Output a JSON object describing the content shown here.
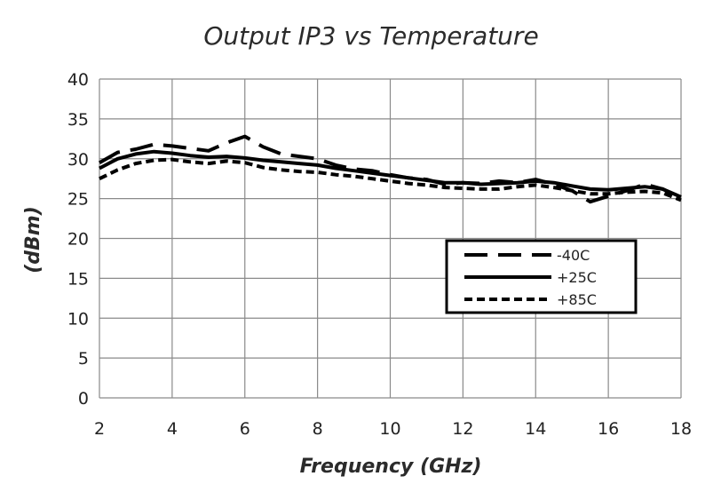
{
  "chart_data": {
    "type": "line",
    "title": "Output IP3 vs Temperature",
    "xlabel": "Frequency (GHz)",
    "ylabel": "(dBm)",
    "xlim": [
      2,
      18
    ],
    "ylim": [
      0,
      40
    ],
    "xticks": [
      2,
      4,
      6,
      8,
      10,
      12,
      14,
      16,
      18
    ],
    "yticks": [
      0,
      5,
      10,
      15,
      20,
      25,
      30,
      35,
      40
    ],
    "grid": true,
    "legend_position": "center-right",
    "series": [
      {
        "name": "-40C",
        "style": "long-dash",
        "color": "#000000",
        "x": [
          2,
          2.5,
          3,
          3.5,
          4,
          4.5,
          5,
          5.5,
          6,
          6.5,
          7,
          7.5,
          8,
          8.5,
          9,
          9.5,
          10,
          10.5,
          11,
          11.5,
          12,
          12.5,
          13,
          13.5,
          14,
          14.5,
          15,
          15.5,
          16,
          16.5,
          17,
          17.5,
          18
        ],
        "y": [
          29.5,
          30.8,
          31.2,
          31.8,
          31.6,
          31.3,
          31.0,
          32.0,
          32.8,
          31.5,
          30.6,
          30.3,
          30.0,
          29.2,
          28.7,
          28.5,
          28.0,
          27.6,
          27.4,
          26.8,
          27.0,
          26.9,
          27.2,
          27.0,
          27.4,
          26.8,
          26.0,
          24.6,
          25.3,
          26.0,
          26.8,
          26.2,
          25.0
        ]
      },
      {
        "name": "+25C",
        "style": "solid",
        "color": "#000000",
        "x": [
          2,
          2.5,
          3,
          3.5,
          4,
          4.5,
          5,
          5.5,
          6,
          6.5,
          7,
          7.5,
          8,
          8.5,
          9,
          9.5,
          10,
          10.5,
          11,
          11.5,
          12,
          12.5,
          13,
          13.5,
          14,
          14.5,
          15,
          15.5,
          16,
          16.5,
          17,
          17.5,
          18
        ],
        "y": [
          28.8,
          30.0,
          30.6,
          30.9,
          30.7,
          30.4,
          30.2,
          30.3,
          30.1,
          29.8,
          29.6,
          29.4,
          29.2,
          28.8,
          28.5,
          28.2,
          27.9,
          27.6,
          27.3,
          27.0,
          27.0,
          26.8,
          26.9,
          27.0,
          27.2,
          27.0,
          26.6,
          26.2,
          26.1,
          26.3,
          26.5,
          26.2,
          25.2
        ]
      },
      {
        "name": "+85C",
        "style": "short-dash",
        "color": "#000000",
        "x": [
          2,
          2.5,
          3,
          3.5,
          4,
          4.5,
          5,
          5.5,
          6,
          6.5,
          7,
          7.5,
          8,
          8.5,
          9,
          9.5,
          10,
          10.5,
          11,
          11.5,
          12,
          12.5,
          13,
          13.5,
          14,
          14.5,
          15,
          15.5,
          16,
          16.5,
          17,
          17.5,
          18
        ],
        "y": [
          27.5,
          28.6,
          29.4,
          29.8,
          29.9,
          29.6,
          29.4,
          29.7,
          29.5,
          28.9,
          28.6,
          28.4,
          28.3,
          28.0,
          27.8,
          27.5,
          27.2,
          26.9,
          26.7,
          26.4,
          26.3,
          26.2,
          26.2,
          26.5,
          26.7,
          26.4,
          26.0,
          25.6,
          25.6,
          25.8,
          25.9,
          25.7,
          24.8
        ]
      }
    ]
  }
}
